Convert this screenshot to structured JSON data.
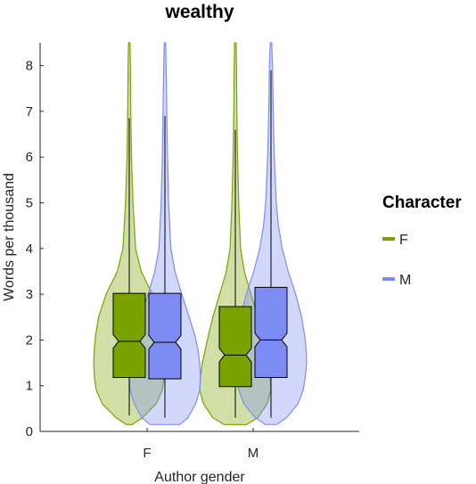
{
  "chart_data": {
    "type": "violin-box",
    "title": "wealthy",
    "xlabel": "Author gender",
    "ylabel": "Words per thousand",
    "categories": [
      "F",
      "M"
    ],
    "ylim": [
      0,
      8.5
    ],
    "yticks": [
      0,
      1,
      2,
      3,
      4,
      5,
      6,
      7,
      8
    ],
    "legend": {
      "title": "Character",
      "position": "right"
    },
    "series": [
      {
        "name": "F",
        "color": "#7aa300",
        "groups": [
          {
            "category": "F",
            "box": {
              "q1": 1.18,
              "median": 1.97,
              "q3": 3.02,
              "notch_low": 1.82,
              "notch_high": 2.12,
              "whisker_low": 0.35,
              "whisker_high": 6.85
            },
            "violin_top": 8.5,
            "violin": [
              [
                0.15,
                0.08
              ],
              [
                0.3,
                0.35
              ],
              [
                0.6,
                0.72
              ],
              [
                0.9,
                0.88
              ],
              [
                1.2,
                0.93
              ],
              [
                1.5,
                0.95
              ],
              [
                1.8,
                0.93
              ],
              [
                2.1,
                0.9
              ],
              [
                2.5,
                0.82
              ],
              [
                3.0,
                0.62
              ],
              [
                3.5,
                0.32
              ],
              [
                4.0,
                0.17
              ],
              [
                5.0,
                0.1
              ],
              [
                6.0,
                0.06
              ],
              [
                7.0,
                0.04
              ],
              [
                8.0,
                0.03
              ],
              [
                8.5,
                0.02
              ]
            ]
          },
          {
            "category": "M",
            "box": {
              "q1": 0.98,
              "median": 1.67,
              "q3": 2.73,
              "notch_low": 1.52,
              "notch_high": 1.82,
              "whisker_low": 0.3,
              "whisker_high": 6.6
            },
            "violin_top": 8.5,
            "violin": [
              [
                0.15,
                0.3
              ],
              [
                0.3,
                0.6
              ],
              [
                0.6,
                0.85
              ],
              [
                0.9,
                0.95
              ],
              [
                1.2,
                0.93
              ],
              [
                1.5,
                0.88
              ],
              [
                1.8,
                0.8
              ],
              [
                2.1,
                0.72
              ],
              [
                2.5,
                0.6
              ],
              [
                3.0,
                0.42
              ],
              [
                3.5,
                0.24
              ],
              [
                4.0,
                0.14
              ],
              [
                5.0,
                0.09
              ],
              [
                6.0,
                0.06
              ],
              [
                7.0,
                0.04
              ],
              [
                8.0,
                0.03
              ],
              [
                8.5,
                0.02
              ]
            ]
          }
        ]
      },
      {
        "name": "M",
        "color": "#7d8cf5",
        "groups": [
          {
            "category": "F",
            "box": {
              "q1": 1.15,
              "median": 1.95,
              "q3": 3.02,
              "notch_low": 1.8,
              "notch_high": 2.1,
              "whisker_low": 0.3,
              "whisker_high": 6.9
            },
            "violin_top": 8.5,
            "violin": [
              [
                0.15,
                0.4
              ],
              [
                0.3,
                0.62
              ],
              [
                0.6,
                0.82
              ],
              [
                0.9,
                0.93
              ],
              [
                1.2,
                0.95
              ],
              [
                1.5,
                0.93
              ],
              [
                1.8,
                0.88
              ],
              [
                2.1,
                0.8
              ],
              [
                2.5,
                0.65
              ],
              [
                3.0,
                0.45
              ],
              [
                3.5,
                0.27
              ],
              [
                4.0,
                0.16
              ],
              [
                5.0,
                0.1
              ],
              [
                6.0,
                0.07
              ],
              [
                7.0,
                0.05
              ],
              [
                8.0,
                0.03
              ],
              [
                8.5,
                0.02
              ]
            ]
          },
          {
            "category": "M",
            "box": {
              "q1": 1.18,
              "median": 2.0,
              "q3": 3.15,
              "notch_low": 1.85,
              "notch_high": 2.15,
              "whisker_low": 0.3,
              "whisker_high": 7.9
            },
            "violin_top": 8.5,
            "violin": [
              [
                0.15,
                0.15
              ],
              [
                0.3,
                0.42
              ],
              [
                0.6,
                0.72
              ],
              [
                0.9,
                0.86
              ],
              [
                1.2,
                0.92
              ],
              [
                1.5,
                0.95
              ],
              [
                1.8,
                0.94
              ],
              [
                2.1,
                0.9
              ],
              [
                2.5,
                0.82
              ],
              [
                3.0,
                0.66
              ],
              [
                3.5,
                0.46
              ],
              [
                4.0,
                0.3
              ],
              [
                4.5,
                0.2
              ],
              [
                5.0,
                0.14
              ],
              [
                6.0,
                0.09
              ],
              [
                7.0,
                0.06
              ],
              [
                8.0,
                0.04
              ],
              [
                8.5,
                0.02
              ]
            ]
          }
        ]
      }
    ]
  }
}
